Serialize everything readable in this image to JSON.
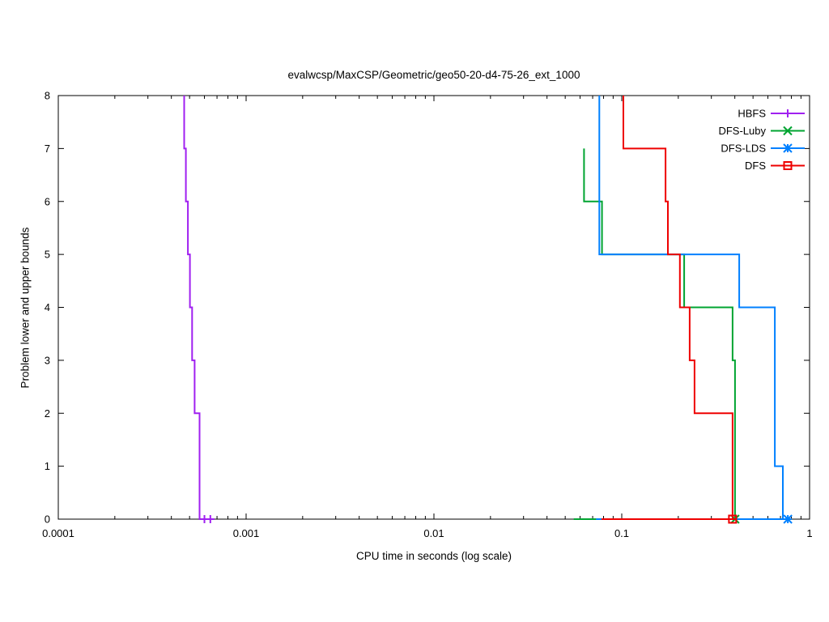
{
  "page": {
    "background": "#ffffff"
  },
  "chart_data": {
    "type": "line",
    "title": "evalwcsp/MaxCSP/Geometric/geo50-20-d4-75-26_ext_1000",
    "xlabel": "CPU time in seconds (log scale)",
    "ylabel": "Problem lower and upper bounds",
    "x_scale": "log",
    "xlim": [
      0.0001,
      1
    ],
    "ylim": [
      0,
      8
    ],
    "x_ticks": [
      0.0001,
      0.001,
      0.01,
      0.1,
      1
    ],
    "x_tick_labels": [
      "0.0001",
      "0.001",
      "0.01",
      "0.1",
      "1"
    ],
    "y_ticks": [
      0,
      1,
      2,
      3,
      4,
      5,
      6,
      7,
      8
    ],
    "grid": false,
    "legend_position": "top-right-inside",
    "axis_color": "#000000",
    "series": [
      {
        "name": "HBFS",
        "color": "#a020f0",
        "marker": "plus",
        "paths": [
          [
            [
              0.000468,
              8
            ],
            [
              0.000468,
              7
            ],
            [
              0.000478,
              7
            ],
            [
              0.000478,
              6
            ],
            [
              0.00049,
              6
            ],
            [
              0.00049,
              5
            ],
            [
              0.000502,
              5
            ],
            [
              0.000502,
              4
            ],
            [
              0.000516,
              4
            ],
            [
              0.000516,
              3
            ],
            [
              0.000532,
              3
            ],
            [
              0.000532,
              2
            ],
            [
              0.000565,
              2
            ],
            [
              0.000565,
              0
            ],
            [
              0.00064,
              0
            ]
          ]
        ],
        "markers": [
          [
            0.0006,
            0
          ],
          [
            0.000645,
            0
          ]
        ]
      },
      {
        "name": "DFS-Luby",
        "color": "#00a431",
        "marker": "x",
        "paths": [
          [
            [
              0.063,
              7
            ],
            [
              0.063,
              6
            ],
            [
              0.0785,
              6
            ],
            [
              0.0785,
              5
            ],
            [
              0.215,
              5
            ],
            [
              0.215,
              4
            ],
            [
              0.389,
              4
            ],
            [
              0.389,
              3
            ],
            [
              0.401,
              3
            ],
            [
              0.401,
              0
            ]
          ],
          [
            [
              0.0555,
              0
            ],
            [
              0.401,
              0
            ]
          ]
        ],
        "markers": [
          [
            0.401,
            0
          ]
        ]
      },
      {
        "name": "DFS-LDS",
        "color": "#0080ff",
        "marker": "star",
        "paths": [
          [
            [
              0.076,
              8
            ],
            [
              0.076,
              5
            ],
            [
              0.422,
              5
            ],
            [
              0.422,
              4
            ],
            [
              0.653,
              4
            ],
            [
              0.653,
              1
            ],
            [
              0.721,
              1
            ],
            [
              0.721,
              0
            ],
            [
              0.79,
              0
            ]
          ],
          [
            [
              0.073,
              0
            ],
            [
              0.79,
              0
            ]
          ]
        ],
        "markers": [
          [
            0.766,
            0
          ]
        ]
      },
      {
        "name": "DFS",
        "color": "#ee0000",
        "marker": "square",
        "paths": [
          [
            [
              0.102,
              8
            ],
            [
              0.102,
              7
            ],
            [
              0.171,
              7
            ],
            [
              0.171,
              6
            ],
            [
              0.176,
              6
            ],
            [
              0.176,
              5
            ],
            [
              0.204,
              5
            ],
            [
              0.204,
              4
            ],
            [
              0.23,
              4
            ],
            [
              0.23,
              3
            ],
            [
              0.244,
              3
            ],
            [
              0.244,
              2
            ],
            [
              0.389,
              2
            ],
            [
              0.389,
              0
            ],
            [
              0.405,
              0
            ]
          ],
          [
            [
              0.078,
              0
            ],
            [
              0.405,
              0
            ]
          ]
        ],
        "markers": [
          [
            0.389,
            0
          ]
        ]
      }
    ]
  }
}
